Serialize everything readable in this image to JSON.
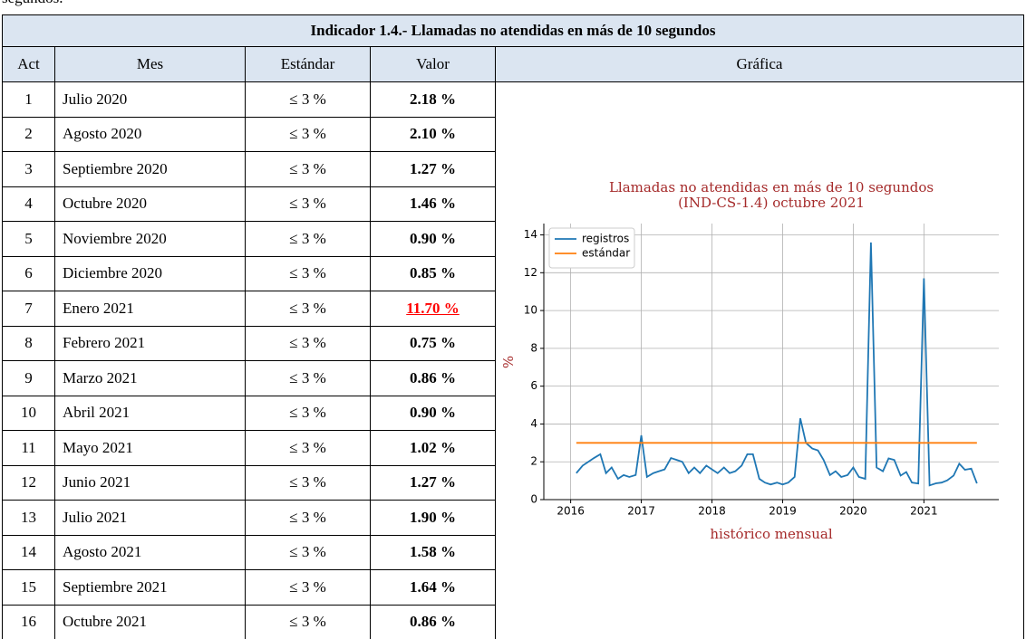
{
  "top_text": "segundos.",
  "table": {
    "title": "Indicador 1.4.- Llamadas no atendidas en más de 10 segundos",
    "columns": [
      "Act",
      "Mes",
      "Estándar",
      "Valor",
      "Gráfica"
    ],
    "rows": [
      {
        "act": 1,
        "mes": "Julio 2020",
        "estandar": "≤ 3 %",
        "valor": "2.18 %"
      },
      {
        "act": 2,
        "mes": "Agosto 2020",
        "estandar": "≤ 3 %",
        "valor": "2.10 %"
      },
      {
        "act": 3,
        "mes": "Septiembre 2020",
        "estandar": "≤ 3 %",
        "valor": "1.27 %"
      },
      {
        "act": 4,
        "mes": "Octubre 2020",
        "estandar": "≤ 3 %",
        "valor": "1.46 %"
      },
      {
        "act": 5,
        "mes": "Noviembre 2020",
        "estandar": "≤ 3 %",
        "valor": "0.90 %"
      },
      {
        "act": 6,
        "mes": "Diciembre 2020",
        "estandar": "≤ 3 %",
        "valor": "0.85 %"
      },
      {
        "act": 7,
        "mes": "Enero 2021",
        "estandar": "≤ 3 %",
        "valor": "11.70 %",
        "color": "#ff0000"
      },
      {
        "act": 8,
        "mes": "Febrero 2021",
        "estandar": "≤ 3 %",
        "valor": "0.75 %"
      },
      {
        "act": 9,
        "mes": "Marzo 2021",
        "estandar": "≤ 3 %",
        "valor": "0.86 %"
      },
      {
        "act": 10,
        "mes": "Abril 2021",
        "estandar": "≤ 3 %",
        "valor": "0.90 %"
      },
      {
        "act": 11,
        "mes": "Mayo 2021",
        "estandar": "≤ 3 %",
        "valor": "1.02 %"
      },
      {
        "act": 12,
        "mes": "Junio 2021",
        "estandar": "≤ 3 %",
        "valor": "1.27 %"
      },
      {
        "act": 13,
        "mes": "Julio 2021",
        "estandar": "≤ 3 %",
        "valor": "1.90 %"
      },
      {
        "act": 14,
        "mes": "Agosto 2021",
        "estandar": "≤ 3 %",
        "valor": "1.58 %"
      },
      {
        "act": 15,
        "mes": "Septiembre 2021",
        "estandar": "≤ 3 %",
        "valor": "1.64 %"
      },
      {
        "act": 16,
        "mes": "Octubre 2021",
        "estandar": "≤ 3 %",
        "valor": "0.86 %"
      }
    ]
  },
  "chart_data": {
    "type": "line",
    "title": [
      "Llamadas no atendidas en más de 10 segundos",
      "(IND-CS-1.4) octubre 2021"
    ],
    "title_color": "#a52a2a",
    "xlabel": "histórico mensual",
    "ylabel": "%",
    "xlim": [
      2015.62,
      2022.06
    ],
    "ylim": [
      0,
      14.6
    ],
    "xticks": [
      2016,
      2017,
      2018,
      2019,
      2020,
      2021
    ],
    "yticks": [
      0,
      2,
      4,
      6,
      8,
      10,
      12,
      14
    ],
    "grid": true,
    "legend": "upper left",
    "series": [
      {
        "name": "registros",
        "color": "#1f77b4",
        "x": [
          2016.08,
          2016.17,
          2016.25,
          2016.33,
          2016.42,
          2016.5,
          2016.58,
          2016.67,
          2016.75,
          2016.83,
          2016.92,
          2017,
          2017.08,
          2017.17,
          2017.25,
          2017.33,
          2017.42,
          2017.5,
          2017.58,
          2017.67,
          2017.75,
          2017.83,
          2017.92,
          2018,
          2018.08,
          2018.17,
          2018.25,
          2018.33,
          2018.42,
          2018.5,
          2018.58,
          2018.67,
          2018.75,
          2018.83,
          2018.92,
          2019,
          2019.08,
          2019.17,
          2019.25,
          2019.33,
          2019.42,
          2019.5,
          2019.58,
          2019.67,
          2019.75,
          2019.83,
          2019.92,
          2020,
          2020.08,
          2020.17,
          2020.25,
          2020.33,
          2020.42,
          2020.5,
          2020.58,
          2020.67,
          2020.75,
          2020.83,
          2020.92,
          2021,
          2021.08,
          2021.17,
          2021.25,
          2021.33,
          2021.42,
          2021.5,
          2021.58,
          2021.67,
          2021.75
        ],
        "values": [
          1.4,
          1.8,
          2.0,
          2.2,
          2.4,
          1.4,
          1.7,
          1.1,
          1.3,
          1.2,
          1.3,
          3.4,
          1.2,
          1.4,
          1.5,
          1.6,
          2.2,
          2.1,
          2.0,
          1.4,
          1.7,
          1.4,
          1.8,
          1.6,
          1.4,
          1.7,
          1.4,
          1.5,
          1.8,
          2.4,
          2.4,
          1.1,
          0.9,
          0.8,
          0.9,
          0.8,
          0.9,
          1.2,
          4.3,
          3.0,
          2.7,
          2.6,
          2.1,
          1.3,
          1.5,
          1.2,
          1.3,
          1.7,
          1.2,
          1.1,
          13.6,
          1.7,
          1.5,
          2.18,
          2.1,
          1.27,
          1.46,
          0.9,
          0.85,
          11.7,
          0.75,
          0.86,
          0.9,
          1.02,
          1.27,
          1.9,
          1.58,
          1.64,
          0.86
        ]
      },
      {
        "name": "estándar",
        "color": "#ff7f0e",
        "x": [
          2016.08,
          2021.75
        ],
        "values": [
          3,
          3
        ]
      }
    ]
  }
}
